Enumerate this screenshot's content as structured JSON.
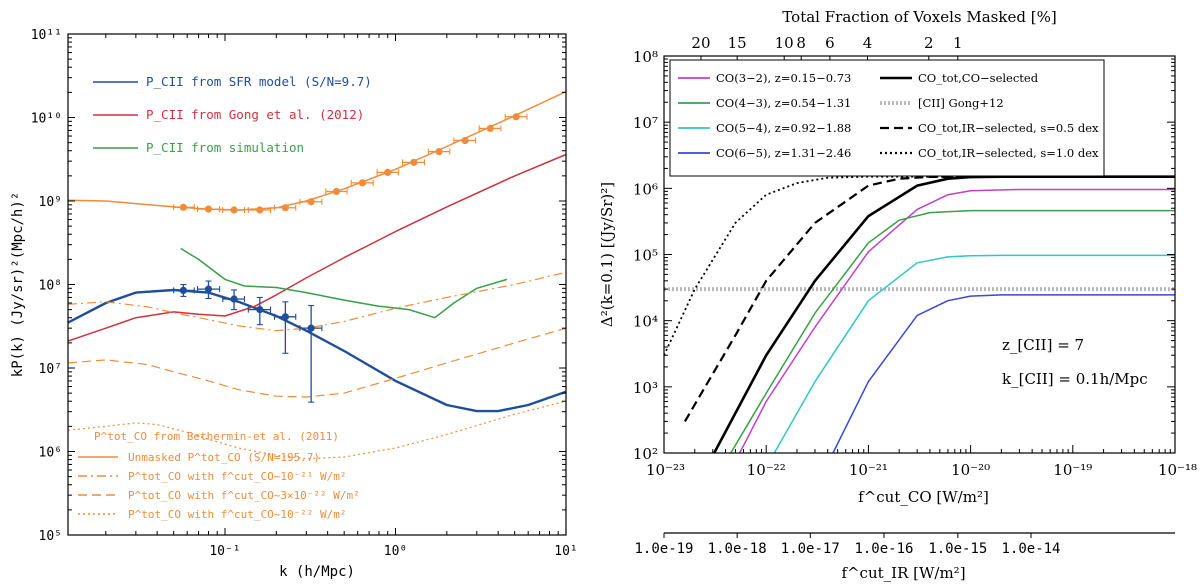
{
  "colors": {
    "orange": "#f08c3a",
    "red": "#cc3340",
    "green": "#3a9e4a",
    "blue": "#1f4e9a",
    "magenta": "#c040c8",
    "cyan": "#30c6c8",
    "royal": "#3848d8",
    "black": "#000000",
    "grey": "#b8b8b8"
  },
  "chart_data": [
    {
      "type": "line",
      "title": "",
      "xlabel": "k (h/Mpc)",
      "ylabel": "kP(k)  (Jy/sr)²(Mpc/h)²",
      "xscale": "log",
      "yscale": "log",
      "xlim": [
        0.012,
        10
      ],
      "ylim": [
        100000.0,
        100000000000.0
      ],
      "x_tick_labels": [
        "10⁻¹",
        "10⁰",
        "10¹"
      ],
      "x_tick_values": [
        0.1,
        1,
        10
      ],
      "y_tick_labels": [
        "10⁵",
        "10⁶",
        "10⁷",
        "10⁸",
        "10⁹",
        "10¹⁰",
        "10¹¹"
      ],
      "y_tick_values": [
        100000.0,
        1000000.0,
        10000000.0,
        100000000.0,
        1000000000.0,
        10000000000.0,
        100000000000.0
      ],
      "legend_top": [
        {
          "label": "P_CII from SFR model (S/N=9.7)",
          "color_key": "blue"
        },
        {
          "label": "P_CII from Gong et al. (2012)",
          "color_key": "red"
        },
        {
          "label": "P_CII from simulation",
          "color_key": "green"
        }
      ],
      "legend_bottom_title": "P^tot_CO from Bethermin-et al. (2011)",
      "legend_bottom": [
        {
          "label": "Unmasked P^tot_CO (S/N=195.7)",
          "style": "solid"
        },
        {
          "label": "P^tot_CO with f^cut_CO~10⁻²¹ W/m²",
          "style": "dashdot"
        },
        {
          "label": "P^tot_CO with f^cut_CO~3×10⁻²² W/m²",
          "style": "dashed"
        },
        {
          "label": "P^tot_CO with f^cut_CO~10⁻²² W/m²",
          "style": "dotted"
        }
      ],
      "series": [
        {
          "name": "P_CII from SFR model (S/N=9.7)",
          "color_key": "blue",
          "style": "solid",
          "width": 2.4,
          "x": [
            0.012,
            0.02,
            0.03,
            0.05,
            0.08,
            0.12,
            0.2,
            0.3,
            0.5,
            1.0,
            2.0,
            3.0,
            4.0,
            6.0,
            10.0
          ],
          "y": [
            35000000.0,
            60000000.0,
            80000000.0,
            86000000.0,
            80000000.0,
            62000000.0,
            42000000.0,
            28000000.0,
            16000000.0,
            7000000.0,
            3600000.0,
            3050000.0,
            3050000.0,
            3600000.0,
            5200000.0
          ]
        },
        {
          "name": "P_CII from Gong et al. (2012)",
          "color_key": "red",
          "style": "solid",
          "width": 1.5,
          "x": [
            0.012,
            0.02,
            0.03,
            0.05,
            0.07,
            0.1,
            0.15,
            0.2,
            0.3,
            0.5,
            1.0,
            2.0,
            5.0,
            10.0
          ],
          "y": [
            21000000.0,
            30000000.0,
            40000000.0,
            47000000.0,
            44000000.0,
            42000000.0,
            55000000.0,
            75000000.0,
            120000000.0,
            210000000.0,
            430000000.0,
            850000000.0,
            2000000000.0,
            3600000000.0
          ]
        },
        {
          "name": "P_CII from simulation",
          "color_key": "green",
          "style": "solid",
          "width": 1.5,
          "x": [
            0.055,
            0.07,
            0.1,
            0.13,
            0.2,
            0.3,
            0.5,
            0.8,
            1.2,
            1.7,
            2.2,
            3.0,
            4.5
          ],
          "y": [
            270000000.0,
            200000000.0,
            115000000.0,
            96000000.0,
            92000000.0,
            80000000.0,
            65000000.0,
            55000000.0,
            50000000.0,
            40000000.0,
            60000000.0,
            90000000.0,
            115000000.0
          ]
        },
        {
          "name": "Unmasked P^tot_CO (S/N=195.7)",
          "color_key": "orange",
          "style": "solid",
          "width": 1.5,
          "x": [
            0.012,
            0.02,
            0.03,
            0.05,
            0.08,
            0.12,
            0.2,
            0.3,
            0.5,
            1.0,
            2.0,
            5.0,
            10.0
          ],
          "y": [
            1020000000.0,
            1000000000.0,
            930000000.0,
            850000000.0,
            800000000.0,
            780000000.0,
            830000000.0,
            1000000000.0,
            1400000000.0,
            2400000000.0,
            4500000000.0,
            10500000000.0,
            20500000000.0
          ]
        },
        {
          "name": "P^tot_CO with f^cut_CO~10⁻²¹ W/m²",
          "color_key": "orange",
          "style": "dashdot",
          "width": 1.2,
          "x": [
            0.012,
            0.02,
            0.035,
            0.05,
            0.08,
            0.12,
            0.2,
            0.3,
            0.5,
            1.0,
            2.0,
            5.0,
            10.0
          ],
          "y": [
            58000000.0,
            62000000.0,
            54000000.0,
            46000000.0,
            38000000.0,
            32000000.0,
            28000000.0,
            30000000.0,
            36000000.0,
            52000000.0,
            70000000.0,
            100000000.0,
            140000000.0
          ]
        },
        {
          "name": "P^tot_CO with f^cut_CO~3×10⁻²² W/m²",
          "color_key": "orange",
          "style": "dashed",
          "width": 1.2,
          "x": [
            0.012,
            0.02,
            0.035,
            0.05,
            0.08,
            0.12,
            0.2,
            0.3,
            0.5,
            1.0,
            2.0,
            5.0,
            10.0
          ],
          "y": [
            11500000.0,
            12500000.0,
            11000000.0,
            9000000.0,
            7000000.0,
            5500000.0,
            4600000.0,
            4500000.0,
            5000000.0,
            7500000.0,
            11500000.0,
            20000000.0,
            30000000.0
          ]
        },
        {
          "name": "P^tot_CO with f^cut_CO~10⁻²² W/m²",
          "color_key": "orange",
          "style": "dotted",
          "width": 1.2,
          "x": [
            0.012,
            0.02,
            0.03,
            0.04,
            0.06,
            0.08,
            0.12,
            0.2,
            0.3,
            0.5,
            1.0,
            2.0,
            5.0,
            10.0
          ],
          "y": [
            1800000.0,
            2000000.0,
            2200000.0,
            2100000.0,
            1700000.0,
            1400000.0,
            1100000.0,
            900000.0,
            820000.0,
            860000.0,
            1100000.0,
            1600000.0,
            2800000.0,
            4000000.0
          ]
        }
      ],
      "errorbars": [
        {
          "name": "P_CII from SFR model (S/N=9.7)",
          "color_key": "blue",
          "points": [
            {
              "x": 0.057,
              "y": 85000000.0,
              "xlo": 0.05,
              "xhi": 0.066,
              "ylo": 72000000.0,
              "yhi": 100000000.0
            },
            {
              "x": 0.08,
              "y": 88000000.0,
              "xlo": 0.069,
              "xhi": 0.093,
              "ylo": 68000000.0,
              "yhi": 110000000.0
            },
            {
              "x": 0.113,
              "y": 67000000.0,
              "xlo": 0.097,
              "xhi": 0.13,
              "ylo": 50000000.0,
              "yhi": 86000000.0
            },
            {
              "x": 0.16,
              "y": 50000000.0,
              "xlo": 0.137,
              "xhi": 0.185,
              "ylo": 33000000.0,
              "yhi": 70000000.0
            },
            {
              "x": 0.226,
              "y": 41000000.0,
              "xlo": 0.195,
              "xhi": 0.26,
              "ylo": 15000000.0,
              "yhi": 62000000.0
            },
            {
              "x": 0.32,
              "y": 30000000.0,
              "xlo": 0.275,
              "xhi": 0.37,
              "ylo": 3900000.0,
              "yhi": 56000000.0
            }
          ]
        },
        {
          "name": "Unmasked P^tot_CO (S/N=195.7)",
          "color_key": "orange",
          "points": [
            {
              "x": 0.057,
              "y": 840000000.0,
              "xlo": 0.05,
              "xhi": 0.066
            },
            {
              "x": 0.08,
              "y": 800000000.0,
              "xlo": 0.069,
              "xhi": 0.093
            },
            {
              "x": 0.113,
              "y": 780000000.0,
              "xlo": 0.097,
              "xhi": 0.13
            },
            {
              "x": 0.16,
              "y": 780000000.0,
              "xlo": 0.137,
              "xhi": 0.185
            },
            {
              "x": 0.226,
              "y": 830000000.0,
              "xlo": 0.195,
              "xhi": 0.26
            },
            {
              "x": 0.32,
              "y": 980000000.0,
              "xlo": 0.275,
              "xhi": 0.37
            },
            {
              "x": 0.45,
              "y": 1300000000.0,
              "xlo": 0.39,
              "xhi": 0.52
            },
            {
              "x": 0.64,
              "y": 1650000000.0,
              "xlo": 0.55,
              "xhi": 0.74
            },
            {
              "x": 0.9,
              "y": 2200000000.0,
              "xlo": 0.78,
              "xhi": 1.04
            },
            {
              "x": 1.28,
              "y": 2900000000.0,
              "xlo": 1.1,
              "xhi": 1.48
            },
            {
              "x": 1.8,
              "y": 3900000000.0,
              "xlo": 1.56,
              "xhi": 2.08
            },
            {
              "x": 2.56,
              "y": 5300000000.0,
              "xlo": 2.2,
              "xhi": 2.95
            },
            {
              "x": 3.6,
              "y": 7400000000.0,
              "xlo": 3.1,
              "xhi": 4.15
            },
            {
              "x": 5.1,
              "y": 10200000000.0,
              "xlo": 4.4,
              "xhi": 5.9
            }
          ]
        }
      ]
    },
    {
      "type": "line",
      "title": "",
      "top_axis_label": "Total Fraction of Voxels Masked [%]",
      "top_ticks": [
        {
          "label": "20",
          "x": 2.3e-23
        },
        {
          "label": "15",
          "x": 5.2e-23
        },
        {
          "label": "10",
          "x": 1.5e-22
        },
        {
          "label": "8",
          "x": 2.2e-22
        },
        {
          "label": "6",
          "x": 4.2e-22
        },
        {
          "label": "4",
          "x": 9.8e-22
        },
        {
          "label": "2",
          "x": 3.9e-21
        },
        {
          "label": "1",
          "x": 7.5e-21
        }
      ],
      "xlabel": "f^cut_CO [W/m²]",
      "ylabel": "Δ²(k=0.1) [(Jy/Sr)²]",
      "xscale": "log",
      "yscale": "log",
      "xlim": [
        1e-23,
        1e-18
      ],
      "ylim": [
        100,
        100000000.0
      ],
      "x_tick_labels": [
        "10⁻²³",
        "10⁻²²",
        "10⁻²¹",
        "10⁻²⁰",
        "10⁻¹⁹",
        "10⁻¹⁸"
      ],
      "x_tick_values": [
        1e-23,
        1e-22,
        1e-21,
        1e-20,
        1e-19,
        1e-18
      ],
      "y_tick_labels": [
        "10²",
        "10³",
        "10⁴",
        "10⁵",
        "10⁶",
        "10⁷",
        "10⁸"
      ],
      "y_tick_values": [
        100,
        1000,
        10000,
        100000,
        1000000,
        10000000,
        100000000
      ],
      "secondary_xaxis_label": "f^cut_IR [W/m²]",
      "secondary_ticks": [
        {
          "label": "1.0e-19",
          "x": 1e-23
        },
        {
          "label": "1.0e-18",
          "x": 5.2e-23
        },
        {
          "label": "1.0e-17",
          "x": 2.7e-22
        },
        {
          "label": "1.0e-16",
          "x": 1.42e-21
        },
        {
          "label": "1.0e-15",
          "x": 7.5e-21
        },
        {
          "label": "1.0e-14",
          "x": 3.9e-20
        }
      ],
      "annotations": [
        "z_[CII] = 7",
        "k_[CII] = 0.1h/Mpc"
      ],
      "legend_left": [
        {
          "label": "CO(3−2), z=0.15−0.73",
          "color_key": "magenta"
        },
        {
          "label": "CO(4−3), z=0.54−1.31",
          "color_key": "green"
        },
        {
          "label": "CO(5−4), z=0.92−1.88",
          "color_key": "cyan"
        },
        {
          "label": "CO(6−5), z=1.31−2.46",
          "color_key": "royal"
        }
      ],
      "legend_right": [
        {
          "label": "CO_tot,CO−selected",
          "style": "solid"
        },
        {
          "label": "[CII] Gong+12",
          "style": "grey-dotted"
        },
        {
          "label": "CO_tot,IR−selected, s=0.5 dex",
          "style": "dashed"
        },
        {
          "label": "CO_tot,IR−selected, s=1.0 dex",
          "style": "dotted"
        }
      ],
      "series": [
        {
          "name": "CO(3−2), z=0.15−0.73",
          "color_key": "magenta",
          "style": "solid",
          "width": 1.5,
          "x": [
            5.5e-23,
            1e-22,
            3e-22,
            1e-21,
            3e-21,
            6e-21,
            1e-20,
            3e-20,
            1e-18
          ],
          "y": [
            100,
            600,
            8000,
            110000,
            480000,
            800000,
            920000,
            960000,
            960000
          ]
        },
        {
          "name": "CO(4−3), z=0.54−1.31",
          "color_key": "green",
          "style": "solid",
          "width": 1.5,
          "x": [
            4.5e-23,
            1e-22,
            3e-22,
            1e-21,
            2e-21,
            4e-21,
            1e-20,
            1e-18
          ],
          "y": [
            100,
            800,
            13000,
            150000,
            330000,
            430000,
            460000,
            460000
          ]
        },
        {
          "name": "CO(5−4), z=0.92−1.88",
          "color_key": "cyan",
          "style": "solid",
          "width": 1.5,
          "x": [
            1.2e-22,
            3e-22,
            1e-21,
            3e-21,
            6e-21,
            1e-20,
            2e-20,
            1e-18
          ],
          "y": [
            100,
            1200,
            20000,
            75000,
            92000,
            96000,
            97000,
            97000
          ]
        },
        {
          "name": "CO(6−5), z=1.31−2.46",
          "color_key": "royal",
          "style": "solid",
          "width": 1.5,
          "x": [
            4.5e-22,
            1e-21,
            3e-21,
            6e-21,
            1e-20,
            2e-20,
            1e-18
          ],
          "y": [
            100,
            1200,
            12000,
            20000,
            23500,
            24500,
            24500
          ]
        },
        {
          "name": "CO_tot,CO−selected",
          "color_key": "black",
          "style": "solid",
          "width": 2.6,
          "x": [
            3.1e-23,
            1e-22,
            3e-22,
            1e-21,
            3e-21,
            6e-21,
            1e-20,
            2e-20,
            1e-18
          ],
          "y": [
            100,
            3000,
            40000,
            380000,
            1100000,
            1400000,
            1480000,
            1500000,
            1500000
          ]
        },
        {
          "name": "CO_tot,IR−selected, s=0.5 dex",
          "color_key": "black",
          "style": "dashed",
          "width": 2.2,
          "x": [
            1.6e-23,
            5e-23,
            1e-22,
            3e-22,
            1e-21,
            2e-21,
            4e-21,
            1e-20,
            1e-18
          ],
          "y": [
            300,
            6000,
            40000,
            300000,
            1100000,
            1400000,
            1490000,
            1500000,
            1500000
          ]
        },
        {
          "name": "CO_tot,IR−selected, s=1.0 dex",
          "color_key": "black",
          "style": "dotted",
          "width": 1.8,
          "x": [
            1e-23,
            2e-23,
            5e-23,
            1e-22,
            2e-22,
            4e-22,
            1e-21,
            2e-21,
            1e-18
          ],
          "y": [
            3000,
            30000,
            300000,
            800000,
            1200000,
            1450000,
            1500000,
            1500000,
            1500000
          ]
        },
        {
          "name": "[CII] Gong+12",
          "color_key": "grey",
          "style": "grey-dotted",
          "width": 4,
          "x": [
            1e-23,
            1e-18
          ],
          "y": [
            30000,
            30000
          ]
        }
      ]
    }
  ]
}
